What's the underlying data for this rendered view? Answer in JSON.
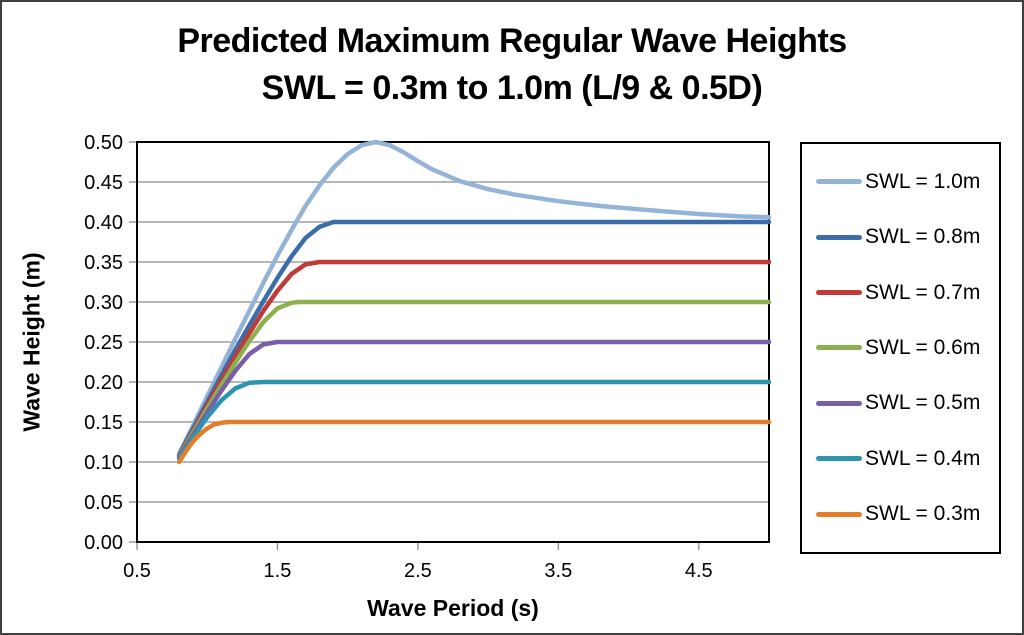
{
  "chart_data": {
    "type": "line",
    "title": "Predicted Maximum Regular Wave Heights",
    "subtitle": "SWL = 0.3m to 1.0m (L/9 & 0.5D)",
    "xlabel": "Wave Period (s)",
    "ylabel": "Wave Height (m)",
    "xlim": [
      0.5,
      5.0
    ],
    "ylim": [
      0.0,
      0.5
    ],
    "grid": "horizontal",
    "gridline_color": "#8C8C8C",
    "axis_color": "#000000",
    "legend_position": "right",
    "x_ticks": [
      0.5,
      1.5,
      2.5,
      3.5,
      4.5
    ],
    "x_tick_labels": [
      "0.5",
      "1.5",
      "2.5",
      "3.5",
      "4.5"
    ],
    "y_ticks": [
      0.0,
      0.05,
      0.1,
      0.15,
      0.2,
      0.25,
      0.3,
      0.35,
      0.4,
      0.45,
      0.5
    ],
    "y_tick_labels": [
      "0.00",
      "0.05",
      "0.10",
      "0.15",
      "0.20",
      "0.25",
      "0.30",
      "0.35",
      "0.40",
      "0.45",
      "0.50"
    ],
    "series": [
      {
        "name": "SWL = 1.0m",
        "color": "#95B3D7",
        "points": [
          [
            0.8,
            0.11
          ],
          [
            0.9,
            0.146
          ],
          [
            1.0,
            0.182
          ],
          [
            1.1,
            0.218
          ],
          [
            1.2,
            0.254
          ],
          [
            1.3,
            0.289
          ],
          [
            1.4,
            0.324
          ],
          [
            1.5,
            0.358
          ],
          [
            1.6,
            0.39
          ],
          [
            1.7,
            0.42
          ],
          [
            1.8,
            0.446
          ],
          [
            1.9,
            0.468
          ],
          [
            2.0,
            0.485
          ],
          [
            2.1,
            0.496
          ],
          [
            2.2,
            0.5
          ],
          [
            2.3,
            0.496
          ],
          [
            2.4,
            0.487
          ],
          [
            2.5,
            0.476
          ],
          [
            2.6,
            0.466
          ],
          [
            2.8,
            0.451
          ],
          [
            3.0,
            0.441
          ],
          [
            3.2,
            0.434
          ],
          [
            3.5,
            0.426
          ],
          [
            3.8,
            0.42
          ],
          [
            4.0,
            0.417
          ],
          [
            4.2,
            0.414
          ],
          [
            4.5,
            0.41
          ],
          [
            4.8,
            0.407
          ],
          [
            5.0,
            0.406
          ]
        ]
      },
      {
        "name": "SWL = 0.8m",
        "color": "#3C6DA9",
        "points": [
          [
            0.8,
            0.109
          ],
          [
            0.9,
            0.142
          ],
          [
            1.0,
            0.175
          ],
          [
            1.1,
            0.208
          ],
          [
            1.2,
            0.24
          ],
          [
            1.3,
            0.271
          ],
          [
            1.4,
            0.301
          ],
          [
            1.5,
            0.33
          ],
          [
            1.6,
            0.357
          ],
          [
            1.7,
            0.38
          ],
          [
            1.8,
            0.394
          ],
          [
            1.9,
            0.4
          ],
          [
            5.0,
            0.4
          ]
        ]
      },
      {
        "name": "SWL = 0.7m",
        "color": "#BE3B38",
        "points": [
          [
            0.8,
            0.108
          ],
          [
            0.9,
            0.139
          ],
          [
            1.0,
            0.171
          ],
          [
            1.1,
            0.202
          ],
          [
            1.2,
            0.232
          ],
          [
            1.3,
            0.261
          ],
          [
            1.4,
            0.289
          ],
          [
            1.5,
            0.314
          ],
          [
            1.6,
            0.335
          ],
          [
            1.7,
            0.347
          ],
          [
            1.8,
            0.35
          ],
          [
            5.0,
            0.35
          ]
        ]
      },
      {
        "name": "SWL = 0.6m",
        "color": "#8DB04E",
        "points": [
          [
            0.8,
            0.107
          ],
          [
            0.9,
            0.137
          ],
          [
            1.0,
            0.167
          ],
          [
            1.1,
            0.196
          ],
          [
            1.2,
            0.224
          ],
          [
            1.3,
            0.251
          ],
          [
            1.4,
            0.275
          ],
          [
            1.5,
            0.292
          ],
          [
            1.6,
            0.299
          ],
          [
            1.65,
            0.3
          ],
          [
            5.0,
            0.3
          ]
        ]
      },
      {
        "name": "SWL = 0.5m",
        "color": "#7A5EA8",
        "points": [
          [
            0.8,
            0.106
          ],
          [
            0.9,
            0.134
          ],
          [
            1.0,
            0.162
          ],
          [
            1.1,
            0.189
          ],
          [
            1.2,
            0.214
          ],
          [
            1.3,
            0.235
          ],
          [
            1.4,
            0.247
          ],
          [
            1.5,
            0.25
          ],
          [
            5.0,
            0.25
          ]
        ]
      },
      {
        "name": "SWL = 0.4m",
        "color": "#2E93AE",
        "points": [
          [
            0.8,
            0.104
          ],
          [
            0.9,
            0.131
          ],
          [
            1.0,
            0.156
          ],
          [
            1.1,
            0.177
          ],
          [
            1.2,
            0.192
          ],
          [
            1.3,
            0.199
          ],
          [
            1.4,
            0.2
          ],
          [
            5.0,
            0.2
          ]
        ]
      },
      {
        "name": "SWL = 0.3m",
        "color": "#E07E2C",
        "points": [
          [
            0.8,
            0.1
          ],
          [
            0.85,
            0.114
          ],
          [
            0.9,
            0.126
          ],
          [
            0.95,
            0.135
          ],
          [
            1.0,
            0.142
          ],
          [
            1.05,
            0.147
          ],
          [
            1.1,
            0.149
          ],
          [
            1.15,
            0.15
          ],
          [
            5.0,
            0.15
          ]
        ]
      }
    ]
  }
}
